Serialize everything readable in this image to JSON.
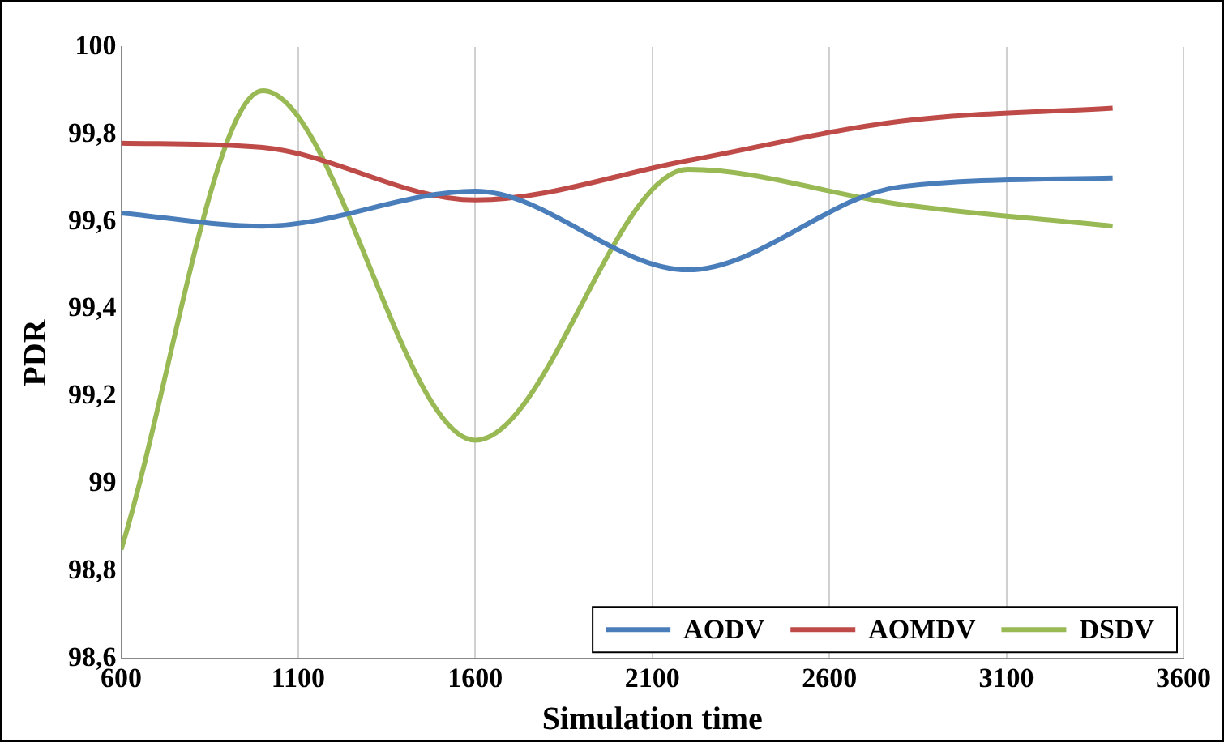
{
  "chart_data": {
    "type": "line",
    "xlabel": "Simulation time",
    "ylabel": "PDR",
    "x": [
      600,
      1000,
      1600,
      2200,
      2800,
      3400
    ],
    "series": [
      {
        "name": "AODV",
        "color": "#4a7ebb",
        "values": [
          99.62,
          99.59,
          99.67,
          99.49,
          99.68,
          99.7
        ]
      },
      {
        "name": "AOMDV",
        "color": "#be4b48",
        "values": [
          99.78,
          99.77,
          99.65,
          99.74,
          99.83,
          99.86
        ]
      },
      {
        "name": "DSDV",
        "color": "#98b954",
        "values": [
          98.85,
          99.9,
          99.1,
          99.72,
          99.64,
          99.59
        ]
      }
    ],
    "xlim": [
      600,
      3600
    ],
    "xticks": [
      600,
      1100,
      1600,
      2100,
      2600,
      3100,
      3600
    ],
    "ylim": [
      98.6,
      100
    ],
    "yticks": [
      {
        "value": 98.6,
        "label": "98,6"
      },
      {
        "value": 98.8,
        "label": "98,8"
      },
      {
        "value": 99,
        "label": "99"
      },
      {
        "value": 99.2,
        "label": "99,2"
      },
      {
        "value": 99.4,
        "label": "99,4"
      },
      {
        "value": 99.6,
        "label": "99,6"
      },
      {
        "value": 99.8,
        "label": "99,8"
      },
      {
        "value": 100,
        "label": "100"
      }
    ],
    "grid": "x",
    "legend": "bottom right",
    "marker": "none",
    "line_style": "solid"
  }
}
